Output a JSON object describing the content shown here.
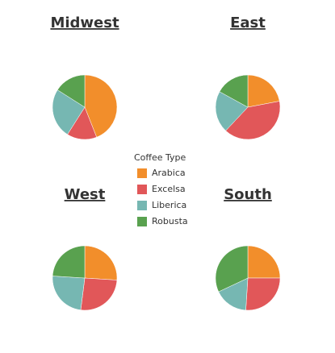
{
  "legend_title": "Coffee Type",
  "chart_data": [
    {
      "type": "pie",
      "title": "Midwest",
      "categories": [
        "Arabica",
        "Excelsa",
        "Liberica",
        "Robusta"
      ],
      "values": [
        44,
        15,
        25,
        16
      ],
      "colors": [
        "#f28e2b",
        "#e15759",
        "#76b7b2",
        "#59a14f"
      ]
    },
    {
      "type": "pie",
      "title": "East",
      "categories": [
        "Arabica",
        "Excelsa",
        "Liberica",
        "Robusta"
      ],
      "values": [
        22,
        40,
        21,
        17
      ],
      "colors": [
        "#f28e2b",
        "#e15759",
        "#76b7b2",
        "#59a14f"
      ]
    },
    {
      "type": "pie",
      "title": "West",
      "categories": [
        "Arabica",
        "Excelsa",
        "Liberica",
        "Robusta"
      ],
      "values": [
        26,
        26,
        24,
        24
      ],
      "colors": [
        "#f28e2b",
        "#e15759",
        "#76b7b2",
        "#59a14f"
      ]
    },
    {
      "type": "pie",
      "title": "South",
      "categories": [
        "Arabica",
        "Excelsa",
        "Liberica",
        "Robusta"
      ],
      "values": [
        25,
        26,
        17,
        32
      ],
      "colors": [
        "#f28e2b",
        "#e15759",
        "#76b7b2",
        "#59a14f"
      ]
    }
  ]
}
